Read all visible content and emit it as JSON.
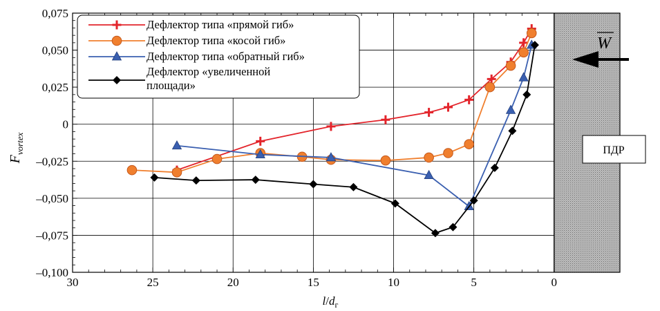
{
  "chart_data": {
    "type": "line",
    "xlabel": "l/dг",
    "xlabel_parts": {
      "l": "l",
      "slash": "/",
      "d": "d",
      "sub": "г"
    },
    "ylabel": "Fvortex",
    "ylabel_parts": {
      "main": "F",
      "sub": "vortex"
    },
    "xlim": [
      30,
      -4.1
    ],
    "ylim": [
      -0.1,
      0.075
    ],
    "x_reversed": true,
    "x_ticks": [
      30,
      25,
      20,
      15,
      10,
      5,
      0
    ],
    "x_tick_labels": [
      "30",
      "25",
      "20",
      "15",
      "10",
      "5",
      "0"
    ],
    "y_ticks": [
      0.075,
      0.05,
      0.025,
      0,
      -0.025,
      -0.05,
      -0.075,
      -0.1
    ],
    "y_tick_labels": [
      "0,075",
      "0,050",
      "0,025",
      "0",
      "–0,025",
      "–0,050",
      "–0,075",
      "–0,100"
    ],
    "grid": true,
    "legend_position": "top-left",
    "series": [
      {
        "name": "Дефлектор типа «прямой гиб»",
        "color": "#e3242b",
        "marker": "plus",
        "x": [
          23.5,
          18.3,
          13.9,
          10.5,
          7.8,
          6.6,
          5.3,
          3.9,
          2.7,
          1.9,
          1.4
        ],
        "y": [
          -0.031,
          -0.0115,
          -0.0015,
          0.003,
          0.008,
          0.0115,
          0.0165,
          0.0305,
          0.042,
          0.055,
          0.0645
        ]
      },
      {
        "name": "Дефлектор типа «косой гиб»",
        "color": "#f07f2e",
        "marker": "circle",
        "x": [
          26.3,
          23.5,
          21.0,
          18.3,
          15.7,
          13.9,
          10.5,
          7.8,
          6.6,
          5.3,
          4.0,
          2.7,
          1.9,
          1.4
        ],
        "y": [
          -0.031,
          -0.0325,
          -0.0235,
          -0.0195,
          -0.022,
          -0.024,
          -0.0245,
          -0.0225,
          -0.0195,
          -0.0135,
          0.025,
          0.0395,
          0.0485,
          0.0615
        ]
      },
      {
        "name": "Дефлектор типа «обратный гиб»",
        "color": "#3a5fb0",
        "marker": "triangle",
        "x": [
          23.5,
          18.3,
          13.9,
          7.8,
          5.3,
          2.7,
          1.9,
          1.4
        ],
        "y": [
          -0.0145,
          -0.0205,
          -0.0225,
          -0.0345,
          -0.0555,
          0.0095,
          0.0315,
          0.0535
        ]
      },
      {
        "name": "Дефлектор «увеличенной площади»",
        "name_lines": [
          "Дефлектор «увеличенной",
          "площади»"
        ],
        "color": "#000000",
        "marker": "diamond",
        "x": [
          24.9,
          22.3,
          18.6,
          15.0,
          12.5,
          9.9,
          7.4,
          6.3,
          5.0,
          3.7,
          2.6,
          1.7,
          1.2
        ],
        "y": [
          -0.036,
          -0.038,
          -0.0375,
          -0.0405,
          -0.0425,
          -0.0535,
          -0.0735,
          -0.0695,
          -0.0515,
          -0.0295,
          -0.0045,
          0.02,
          0.0535
        ]
      }
    ],
    "annotations": {
      "zone_label": "ПДР",
      "vector_label": "W"
    }
  }
}
